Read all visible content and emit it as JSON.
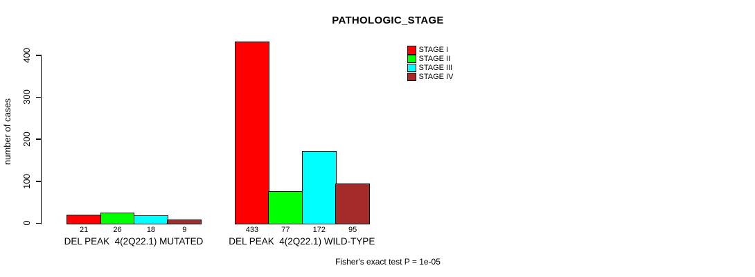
{
  "chart_data": {
    "type": "bar",
    "title": "PATHOLOGIC_STAGE",
    "ylabel": "number of cases",
    "xlabel": "",
    "ylim": [
      0,
      440
    ],
    "yticks": [
      0,
      100,
      200,
      300,
      400
    ],
    "categories": [
      "DEL PEAK  4(2Q22.1) MUTATED",
      "DEL PEAK  4(2Q22.1) WILD-TYPE"
    ],
    "series": [
      {
        "name": "STAGE I",
        "color": "#FF0000",
        "values": [
          21,
          433
        ]
      },
      {
        "name": "STAGE II",
        "color": "#00FF00",
        "values": [
          26,
          77
        ]
      },
      {
        "name": "STAGE III",
        "color": "#00FFFF",
        "values": [
          18,
          172
        ]
      },
      {
        "name": "STAGE IV",
        "color": "#A52A2A",
        "values": [
          9,
          95
        ]
      }
    ],
    "bar_value_labels": [
      [
        21,
        26,
        18,
        9
      ],
      [
        433,
        77,
        172,
        95
      ]
    ],
    "annotation": "Fisher's exact test P = 1e-05",
    "legend_position": "top-right",
    "grid": false,
    "background": "#FFFFFF",
    "axis_color": "#000000",
    "bar_border_color": "#000000"
  }
}
